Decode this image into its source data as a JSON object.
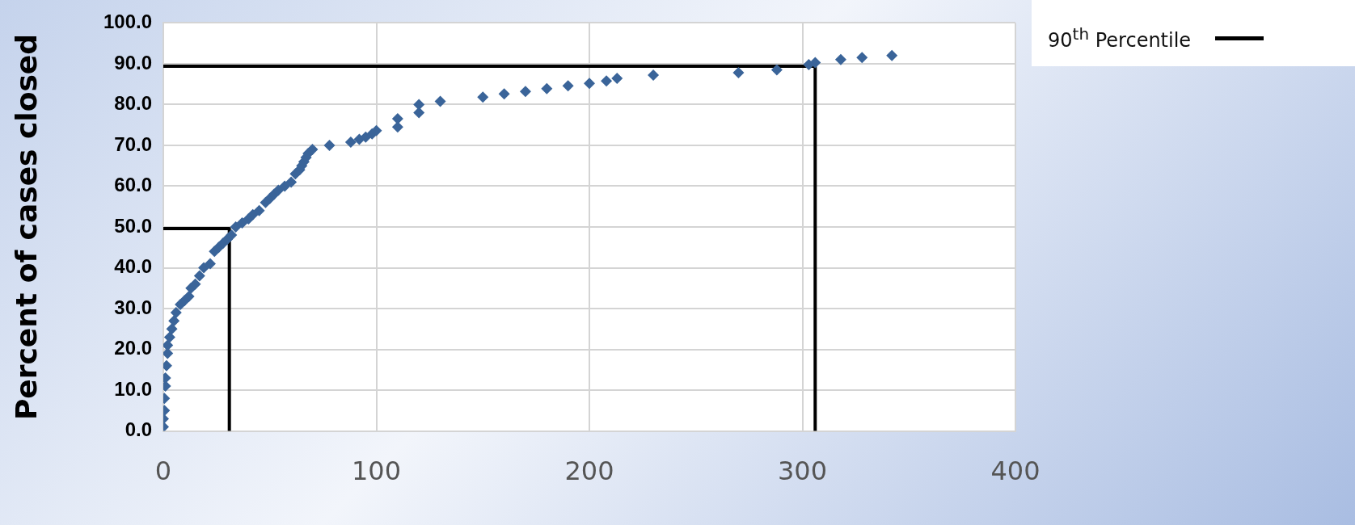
{
  "chart_data": {
    "type": "scatter",
    "ylabel": "Percent of cases closed",
    "xlim": [
      0,
      400
    ],
    "xticks": [
      0,
      100,
      200,
      300,
      400
    ],
    "ylim": [
      0,
      100
    ],
    "yticks": [
      {
        "value": 0,
        "label": "0.0"
      },
      {
        "value": 10,
        "label": "10.0"
      },
      {
        "value": 20,
        "label": "20.0"
      },
      {
        "value": 30,
        "label": "30.0"
      },
      {
        "value": 40,
        "label": "40.0"
      },
      {
        "value": 50,
        "label": "50.0"
      },
      {
        "value": 60,
        "label": "60.0"
      },
      {
        "value": 70,
        "label": "70.0"
      },
      {
        "value": 80,
        "label": "80.0"
      },
      {
        "value": 90,
        "label": "90.0"
      },
      {
        "value": 100,
        "label": "100.0"
      }
    ],
    "grid": true,
    "legend": "top right",
    "marker": "diamond",
    "series": [
      {
        "color": "#3a6499",
        "x": [
          0,
          0,
          0.5,
          0.5,
          1,
          1,
          1.5,
          2,
          2,
          3,
          4,
          5,
          6,
          8,
          10,
          12,
          13,
          15,
          17,
          19,
          22,
          24,
          26,
          28,
          30,
          32,
          34,
          37,
          40,
          42,
          45,
          48,
          50,
          52,
          54,
          57,
          60,
          62,
          64,
          65,
          66,
          67,
          68,
          70,
          78,
          88,
          92,
          95,
          98,
          100,
          110,
          110,
          120,
          120,
          130,
          150,
          160,
          170,
          180,
          190,
          200,
          208,
          213,
          230,
          270,
          288,
          303,
          306,
          318,
          328,
          342
        ],
        "values": [
          1,
          3,
          5,
          8,
          11,
          13,
          16,
          19,
          21,
          23,
          25,
          27,
          29,
          31,
          32,
          33,
          35,
          36,
          38,
          40,
          41,
          44,
          45,
          46,
          47,
          48,
          50,
          51,
          52,
          53,
          54,
          56,
          57,
          58,
          59,
          60,
          61,
          63,
          64,
          65,
          66,
          67,
          68,
          69,
          70,
          70.8,
          71.5,
          72,
          72.8,
          73.6,
          74.5,
          76.5,
          78,
          80,
          80.8,
          81.8,
          82.6,
          83.2,
          83.9,
          84.6,
          85.2,
          85.8,
          86.4,
          87.2,
          87.8,
          88.5,
          89.8,
          90.3,
          91,
          91.5,
          92
        ]
      },
      {
        "type": "line",
        "marker": "none",
        "color": "#000000",
        "x": [
          0,
          31,
          31
        ],
        "values": [
          49.6,
          49.6,
          0
        ]
      },
      {
        "type": "line",
        "marker": "none",
        "name": "90$^{th}$ Percentile",
        "color": "#000000",
        "x": [
          0,
          306,
          306
        ],
        "values": [
          89.4,
          89.4,
          0
        ]
      }
    ]
  }
}
